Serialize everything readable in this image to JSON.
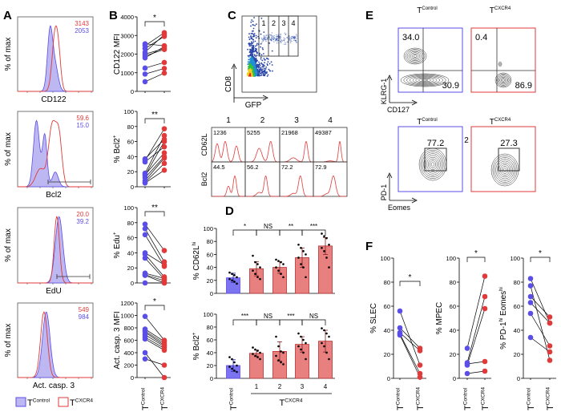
{
  "colors": {
    "control": "#5b4ee6",
    "cxcr4": "#e03a3a",
    "control_fill": "#bdb8f2",
    "cxcr4_bar": "#e88080",
    "control_bar": "#7b73f0"
  },
  "panel_letters": {
    "a": "A",
    "b": "B",
    "c": "C",
    "d": "D",
    "e": "E",
    "f": "F"
  },
  "legend": {
    "control": {
      "base": "T",
      "sup": "Control"
    },
    "cxcr4": {
      "base": "T",
      "sup": "CXCR4"
    }
  },
  "panel_a": {
    "ylabel": "% of max",
    "histograms": [
      {
        "xlabel": "CD122",
        "cxcr4_value": "3143",
        "control_value": "2053"
      },
      {
        "xlabel": "Bcl2",
        "cxcr4_value": "59.6",
        "control_value": "15.0"
      },
      {
        "xlabel": "EdU",
        "cxcr4_value": "20.0",
        "control_value": "39.2"
      },
      {
        "xlabel": "Act. casp. 3",
        "cxcr4_value": "549",
        "control_value": "984"
      }
    ]
  },
  "panel_c": {
    "y_axis": "CD8",
    "x_axis": "GFP",
    "gates": [
      "1",
      "2",
      "3",
      "4"
    ],
    "columns": [
      "1",
      "2",
      "3",
      "4"
    ],
    "rows": [
      {
        "label": "CD62L",
        "values": [
          "1236",
          "5255",
          "21968",
          "49387"
        ]
      },
      {
        "label": "Bcl2",
        "values": [
          "44.5",
          "56.2",
          "72.2",
          "72.9"
        ]
      }
    ]
  },
  "panel_e": {
    "top": {
      "y_axis": "KLRG-1",
      "x_axis": "CD127",
      "plots": [
        {
          "title_base": "T",
          "title_sup": "Control",
          "upper_left": "34.0",
          "lower_right": "30.9"
        },
        {
          "title_base": "T",
          "title_sup": "CXCR4",
          "upper_left": "0.4",
          "lower_right": "86.9"
        }
      ]
    },
    "bottom": {
      "y_axis": "PD-1",
      "x_axis": "Eomes",
      "stray_label": "2",
      "plots": [
        {
          "title_base": "T",
          "title_sup": "Control",
          "gate_value": "77.2"
        },
        {
          "title_base": "T",
          "title_sup": "CXCR4",
          "gate_value": "27.3"
        }
      ]
    }
  },
  "chart_data": [
    {
      "panel": "B",
      "type": "scatter",
      "paired": true,
      "ylabel": [
        {
          "t": "CD122 MFI"
        }
      ],
      "ylim": [
        0,
        4000
      ],
      "yticks": [
        0,
        1000,
        2000,
        3000,
        4000
      ],
      "significance": "*",
      "series": [
        {
          "name": "TControl",
          "values": [
            2550,
            2450,
            2300,
            2100,
            2000,
            1900,
            1800,
            1250,
            930,
            520
          ]
        },
        {
          "name": "TCXCR4",
          "values": [
            2450,
            3150,
            2950,
            3050,
            2300,
            2250,
            2400,
            1550,
            1230,
            980
          ]
        }
      ]
    },
    {
      "panel": "B",
      "type": "scatter",
      "paired": true,
      "ylabel": [
        {
          "t": "% Bcl2"
        },
        {
          "t": "+",
          "sup": true
        }
      ],
      "ylim": [
        0,
        100
      ],
      "yticks": [
        0,
        20,
        40,
        60,
        80,
        100
      ],
      "significance": "**",
      "series": [
        {
          "name": "TControl",
          "values": [
            37,
            35,
            33,
            18,
            16,
            15,
            12,
            8,
            6,
            5
          ]
        },
        {
          "name": "TCXCR4",
          "values": [
            63,
            77,
            53,
            68,
            45,
            60,
            40,
            38,
            31,
            22
          ]
        }
      ]
    },
    {
      "panel": "B",
      "type": "scatter",
      "paired": true,
      "ylabel": [
        {
          "t": "% Edu"
        },
        {
          "t": "+",
          "sup": true
        }
      ],
      "ylim": [
        0,
        100
      ],
      "yticks": [
        0,
        20,
        40,
        60,
        80,
        100
      ],
      "significance": "**",
      "series": [
        {
          "name": "TControl",
          "values": [
            78,
            72,
            64,
            40,
            38,
            33,
            13,
            11,
            10,
            0
          ]
        },
        {
          "name": "TCXCR4",
          "values": [
            43,
            28,
            22,
            24,
            8,
            5,
            6,
            3,
            0,
            0
          ]
        }
      ]
    },
    {
      "panel": "B",
      "type": "scatter",
      "paired": true,
      "ylabel": [
        {
          "t": "Act. casp. 3 MFI"
        }
      ],
      "ylim": [
        0,
        1200
      ],
      "yticks": [
        0,
        200,
        400,
        600,
        800,
        1000,
        1200
      ],
      "significance": "*",
      "xlabels": [
        {
          "base": "T",
          "sup": "Control"
        },
        {
          "base": "T",
          "sup": "CXCR4"
        }
      ],
      "series": [
        {
          "name": "TControl",
          "values": [
            985,
            780,
            750,
            730,
            690,
            650,
            620,
            400,
            300
          ]
        },
        {
          "name": "TCXCR4",
          "values": [
            600,
            580,
            550,
            520,
            500,
            470,
            440,
            0,
            200
          ]
        }
      ]
    },
    {
      "panel": "D",
      "type": "bar",
      "ylabel": [
        {
          "t": "% CD62L"
        },
        {
          "t": "hi",
          "sup": true
        }
      ],
      "ylim": [
        0,
        100
      ],
      "yticks": [
        0,
        20,
        40,
        60,
        80,
        100
      ],
      "categories": [
        "TControl",
        "1",
        "2",
        "3",
        "4"
      ],
      "values": [
        24,
        38,
        40,
        55,
        73
      ],
      "sd": [
        7,
        11,
        9,
        15,
        13
      ],
      "points": [
        [
          32,
          30,
          28,
          25,
          22,
          20,
          18,
          15
        ],
        [
          58,
          48,
          45,
          40,
          35,
          30,
          25,
          22
        ],
        [
          52,
          50,
          48,
          45,
          40,
          35,
          30,
          25
        ],
        [
          75,
          70,
          65,
          60,
          55,
          45,
          40,
          25
        ],
        [
          92,
          88,
          85,
          75,
          70,
          65,
          55,
          40
        ]
      ],
      "significance": [
        "*",
        "NS",
        "**",
        "***"
      ]
    },
    {
      "panel": "D",
      "type": "bar",
      "ylabel": [
        {
          "t": "% Bcl2"
        },
        {
          "t": "+",
          "sup": true
        }
      ],
      "ylim": [
        0,
        100
      ],
      "yticks": [
        0,
        20,
        40,
        60,
        80,
        100
      ],
      "categories": [
        "TControl",
        "1",
        "2",
        "3",
        "4"
      ],
      "xlabels": {
        "control": {
          "base": "T",
          "sup": "Control"
        },
        "numbers": [
          "1",
          "2",
          "3",
          "4"
        ],
        "group": {
          "base": "T",
          "sup": "CXCR4"
        }
      },
      "values": [
        20,
        39,
        42,
        53,
        58
      ],
      "sd": [
        9,
        5,
        15,
        12,
        17
      ],
      "points": [
        [
          33,
          30,
          25,
          20,
          18,
          15,
          12,
          10
        ],
        [
          48,
          45,
          43,
          40,
          38,
          35,
          33,
          30
        ],
        [
          65,
          50,
          42,
          40,
          35,
          28,
          25,
          22
        ],
        [
          70,
          65,
          60,
          55,
          50,
          45,
          40,
          30
        ],
        [
          78,
          75,
          70,
          65,
          55,
          50,
          40,
          30
        ]
      ],
      "significance": [
        "***",
        "NS",
        "***",
        "NS"
      ]
    },
    {
      "panel": "F",
      "type": "scatter",
      "paired": true,
      "ylabel": [
        {
          "t": "% SLEC"
        }
      ],
      "ylim": [
        0,
        100
      ],
      "yticks": [
        0,
        20,
        40,
        60,
        80,
        100
      ],
      "significance": "*",
      "xlabels": [
        {
          "base": "T",
          "sup": "Control"
        },
        {
          "base": "T",
          "sup": "CXCR4"
        }
      ],
      "series": [
        {
          "name": "TControl",
          "values": [
            56,
            42,
            38,
            37,
            36
          ]
        },
        {
          "name": "TCXCR4",
          "values": [
            11,
            25,
            23,
            4,
            1
          ]
        }
      ]
    },
    {
      "panel": "F",
      "type": "scatter",
      "paired": true,
      "ylabel": [
        {
          "t": "% MPEC"
        }
      ],
      "ylim": [
        0,
        100
      ],
      "yticks": [
        0,
        20,
        40,
        60,
        80,
        100
      ],
      "significance": "*",
      "xlabels": [
        {
          "base": "T",
          "sup": "Control"
        },
        {
          "base": "T",
          "sup": "CXCR4"
        }
      ],
      "series": [
        {
          "name": "TControl",
          "values": [
            25,
            13,
            12,
            11,
            4
          ]
        },
        {
          "name": "TCXCR4",
          "values": [
            85,
            68,
            14,
            58,
            6
          ]
        }
      ]
    },
    {
      "panel": "F",
      "type": "scatter",
      "paired": true,
      "ylabel": [
        {
          "t": "% PD-1"
        },
        {
          "t": "hi",
          "sup": true
        },
        {
          "t": " Eomes"
        },
        {
          "t": "hi",
          "sup": true
        }
      ],
      "ylim": [
        0,
        100
      ],
      "yticks": [
        0,
        20,
        40,
        60,
        80,
        100
      ],
      "significance": "*",
      "xlabels": [
        {
          "base": "T",
          "sup": "Control"
        },
        {
          "base": "T",
          "sup": "CXCR4"
        }
      ],
      "series": [
        {
          "name": "TControl",
          "values": [
            83,
            77,
            68,
            63,
            54,
            34
          ]
        },
        {
          "name": "TCXCR4",
          "values": [
            46,
            15,
            51,
            46,
            27,
            22
          ]
        }
      ]
    }
  ]
}
